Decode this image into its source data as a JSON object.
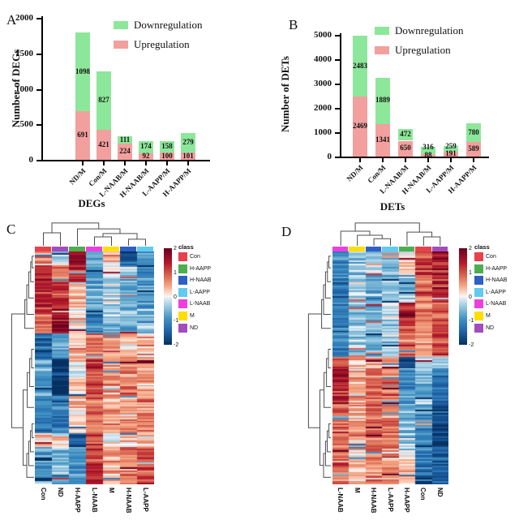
{
  "colors": {
    "downregulation": "#8DE79A",
    "upregulation": "#F2A09E",
    "axis": "#000000",
    "dendrogram": "#4d4d4d"
  },
  "chart_data": [
    {
      "type": "bar",
      "stacked": true,
      "letter": "A",
      "ylabel": "Number of DEGs",
      "xlabel": "DEGs",
      "ylim": [
        0,
        2000
      ],
      "yticks": [
        0,
        500,
        1000,
        1500,
        2000
      ],
      "categories": [
        "ND/M",
        "Con/M",
        "L-NAAB/M",
        "H-NAAB/M",
        "L-AAPP/M",
        "H-AAPP/M"
      ],
      "series": [
        {
          "name": "Upregulation",
          "values": [
            691,
            421,
            224,
            92,
            100,
            101
          ]
        },
        {
          "name": "Downregulation",
          "values": [
            1098,
            827,
            111,
            174,
            158,
            279
          ]
        }
      ],
      "legend": [
        "Downregulation",
        "Upregulation"
      ],
      "legend_position": "top-right",
      "grid": false
    },
    {
      "type": "bar",
      "stacked": true,
      "letter": "B",
      "ylabel": "Number of DETs",
      "xlabel": "DETs",
      "ylim": [
        0,
        5000
      ],
      "yticks": [
        0,
        1000,
        2000,
        3000,
        4000,
        5000
      ],
      "categories": [
        "ND/M",
        "Con/M",
        "L-NAAB/M",
        "H-NAAB/M",
        "L-AAPP/M",
        "H-AAPP/M"
      ],
      "series": [
        {
          "name": "Upregulation",
          "values": [
            2469,
            1341,
            650,
            88,
            191,
            589
          ]
        },
        {
          "name": "Downregulation",
          "values": [
            2483,
            1889,
            472,
            316,
            259,
            780
          ]
        }
      ],
      "legend": [
        "Downregulation",
        "Upregulation"
      ],
      "legend_position": "top-right",
      "grid": false
    },
    {
      "type": "heatmap",
      "letter": "C",
      "columns": [
        "Con",
        "ND",
        "H-AAPP",
        "L-NAAB",
        "M",
        "H-NAAB",
        "L-AAPP"
      ],
      "legend_title": "class",
      "legend": [
        {
          "label": "Con",
          "color": "#E8414B"
        },
        {
          "label": "H-AAPP",
          "color": "#4DAE50"
        },
        {
          "label": "H-NAAB",
          "color": "#2D5FC6"
        },
        {
          "label": "L-AAPP",
          "color": "#5FCBF0"
        },
        {
          "label": "L-NAAB",
          "color": "#EE3EE0"
        },
        {
          "label": "M",
          "color": "#FFDE00"
        },
        {
          "label": "ND",
          "color": "#A44CBE"
        }
      ],
      "colorbar_ticks": [
        2,
        1,
        0,
        -1,
        -2
      ],
      "value_range": [
        -2,
        2
      ],
      "pattern_blocks": [
        {
          "until": 0.06,
          "means": [
            0.5,
            -0.3,
            1.5,
            -0.6,
            0.4,
            -1.6,
            -0.8
          ]
        },
        {
          "until": 0.13,
          "means": [
            1.2,
            0.8,
            1.2,
            -1.0,
            -0.2,
            -0.5,
            -0.9
          ]
        },
        {
          "until": 0.24,
          "means": [
            1.3,
            1.2,
            0.4,
            -0.6,
            -0.4,
            -0.7,
            -0.8
          ]
        },
        {
          "until": 0.35,
          "means": [
            0.8,
            1.7,
            0.2,
            -1.1,
            -0.5,
            -0.5,
            -0.6
          ]
        },
        {
          "until": 0.46,
          "means": [
            -1.4,
            -0.8,
            0.3,
            0.8,
            0.6,
            0.4,
            0.4
          ]
        },
        {
          "until": 0.62,
          "means": [
            -0.8,
            -1.9,
            0.1,
            1.1,
            0.6,
            0.6,
            0.4
          ]
        },
        {
          "until": 0.78,
          "means": [
            -1.1,
            -1.2,
            0.3,
            0.8,
            0.5,
            0.5,
            0.6
          ]
        },
        {
          "until": 0.84,
          "means": [
            0.3,
            0.2,
            -1.5,
            1.0,
            -0.2,
            0.2,
            0.3
          ]
        },
        {
          "until": 1.0,
          "means": [
            -0.7,
            -0.6,
            -0.9,
            1.1,
            0.4,
            0.7,
            1.1
          ]
        }
      ]
    },
    {
      "type": "heatmap",
      "letter": "D",
      "columns": [
        "L-NAAB",
        "M",
        "H-NAAB",
        "L-AAPP",
        "H-AAPP",
        "Con",
        "ND"
      ],
      "legend_title": "class",
      "legend": [
        {
          "label": "Con",
          "color": "#E8414B"
        },
        {
          "label": "H-AAPP",
          "color": "#4DAE50"
        },
        {
          "label": "H-NAAB",
          "color": "#2D5FC6"
        },
        {
          "label": "L-AAPP",
          "color": "#5FCBF0"
        },
        {
          "label": "L-NAAB",
          "color": "#EE3EE0"
        },
        {
          "label": "M",
          "color": "#FFDE00"
        },
        {
          "label": "ND",
          "color": "#A44CBE"
        }
      ],
      "colorbar_ticks": [
        2,
        1,
        0,
        -1,
        -2
      ],
      "value_range": [
        -2,
        2
      ],
      "pattern_blocks": [
        {
          "until": 0.1,
          "means": [
            -1.0,
            -0.4,
            -0.5,
            -0.6,
            0.2,
            1.2,
            1.4
          ]
        },
        {
          "until": 0.22,
          "means": [
            -1.2,
            -0.5,
            -0.7,
            -0.5,
            -0.6,
            0.9,
            1.2
          ]
        },
        {
          "until": 0.32,
          "means": [
            -1.2,
            -0.5,
            -0.6,
            -0.3,
            1.5,
            0.6,
            0.9
          ]
        },
        {
          "until": 0.45,
          "means": [
            -1.0,
            -0.4,
            -0.7,
            -0.5,
            0.8,
            0.5,
            1.1
          ]
        },
        {
          "until": 0.5,
          "means": [
            1.2,
            0.3,
            0.6,
            0.6,
            -1.8,
            -0.2,
            -0.4
          ]
        },
        {
          "until": 0.65,
          "means": [
            1.4,
            0.5,
            0.8,
            0.8,
            -1.0,
            -0.6,
            -1.3
          ]
        },
        {
          "until": 0.85,
          "means": [
            0.9,
            0.5,
            0.9,
            0.7,
            -0.5,
            -1.0,
            -1.7
          ]
        },
        {
          "until": 1.0,
          "means": [
            0.8,
            0.4,
            0.6,
            0.6,
            0.2,
            -1.3,
            -1.6
          ]
        }
      ]
    }
  ]
}
